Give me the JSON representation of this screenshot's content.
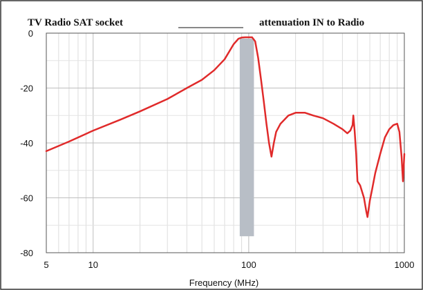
{
  "chart_data": {
    "type": "line",
    "title_left": "TV Radio SAT socket",
    "title_right": "attenuation IN to Radio",
    "xlabel": "Frequency (MHz)",
    "ylabel": "",
    "x_scale": "log",
    "xlim": [
      5,
      1000
    ],
    "ylim": [
      -80,
      0
    ],
    "x_ticks": [
      {
        "value": 5,
        "label": "5"
      },
      {
        "value": 10,
        "label": "10"
      },
      {
        "value": 100,
        "label": "100"
      },
      {
        "value": 1000,
        "label": "1000"
      }
    ],
    "y_ticks": [
      {
        "value": 0,
        "label": "0"
      },
      {
        "value": -20,
        "label": "-20"
      },
      {
        "value": -40,
        "label": "-40"
      },
      {
        "value": -60,
        "label": "-60"
      },
      {
        "value": -80,
        "label": "-80"
      }
    ],
    "grid": true,
    "band": {
      "x_start": 87.5,
      "x_end": 108,
      "y_top": -2,
      "y_bottom": -74,
      "color": "#b8bec6"
    },
    "series": [
      {
        "name": "",
        "color": "#e02a2a",
        "points": [
          [
            5,
            -43
          ],
          [
            7,
            -39.5
          ],
          [
            10,
            -35.5
          ],
          [
            15,
            -31.5
          ],
          [
            20,
            -28.5
          ],
          [
            30,
            -24
          ],
          [
            40,
            -20
          ],
          [
            50,
            -17
          ],
          [
            60,
            -13.5
          ],
          [
            70,
            -9.5
          ],
          [
            80,
            -4
          ],
          [
            86,
            -2
          ],
          [
            90,
            -1.6
          ],
          [
            95,
            -1.5
          ],
          [
            100,
            -1.5
          ],
          [
            105,
            -1.5
          ],
          [
            110,
            -3
          ],
          [
            115,
            -9
          ],
          [
            120,
            -17
          ],
          [
            125,
            -25
          ],
          [
            130,
            -33
          ],
          [
            135,
            -40
          ],
          [
            140,
            -45
          ],
          [
            145,
            -40
          ],
          [
            150,
            -36
          ],
          [
            160,
            -33
          ],
          [
            180,
            -30
          ],
          [
            200,
            -29
          ],
          [
            230,
            -29
          ],
          [
            260,
            -30
          ],
          [
            300,
            -31
          ],
          [
            350,
            -33
          ],
          [
            400,
            -35
          ],
          [
            430,
            -36.5
          ],
          [
            450,
            -35.5
          ],
          [
            465,
            -33.5
          ],
          [
            470,
            -30
          ],
          [
            480,
            -36
          ],
          [
            490,
            -44
          ],
          [
            500,
            -54
          ],
          [
            520,
            -55.5
          ],
          [
            550,
            -60
          ],
          [
            570,
            -65
          ],
          [
            580,
            -67
          ],
          [
            600,
            -61
          ],
          [
            620,
            -57
          ],
          [
            650,
            -51
          ],
          [
            700,
            -44
          ],
          [
            750,
            -38
          ],
          [
            800,
            -35
          ],
          [
            850,
            -33.5
          ],
          [
            900,
            -33
          ],
          [
            930,
            -36
          ],
          [
            960,
            -45
          ],
          [
            980,
            -54
          ],
          [
            1000,
            -44
          ]
        ]
      }
    ]
  }
}
